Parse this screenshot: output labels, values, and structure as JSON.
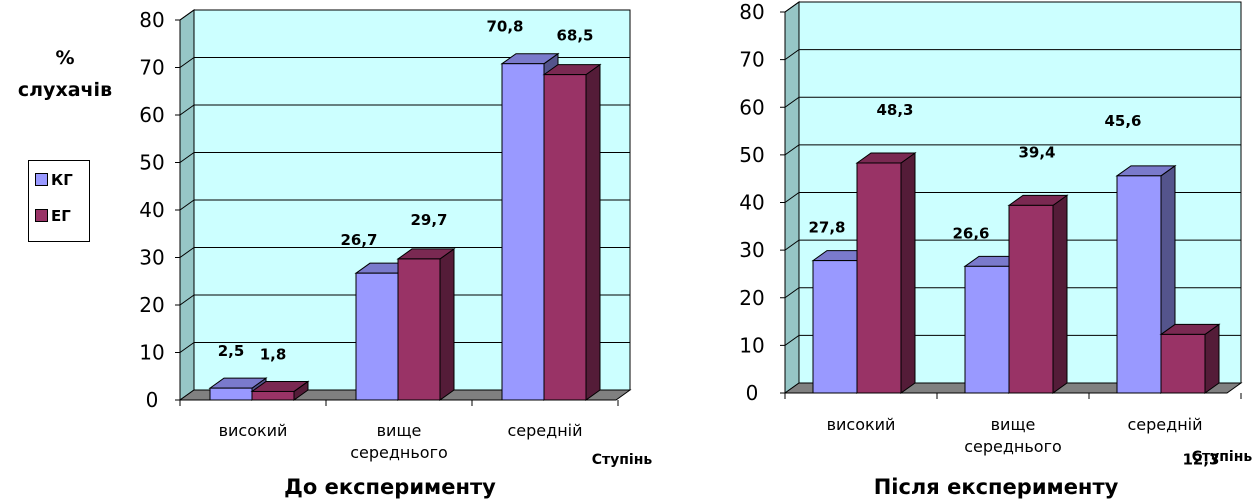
{
  "y_axis_label": [
    "%",
    "слухачів"
  ],
  "legend": [
    {
      "label": "КГ",
      "color": "#9999ff"
    },
    {
      "label": "ЕГ",
      "color": "#993366"
    }
  ],
  "colors": {
    "wall": "#ccffff",
    "side_wall": "#96c6c6",
    "floor": "#808080"
  },
  "chart_data": [
    {
      "type": "bar",
      "title": "До експерименту",
      "xlabel": "Ступінь",
      "ylabel": "% слухачів",
      "categories": [
        [
          "високий"
        ],
        [
          "вище",
          "середнього"
        ],
        [
          "середній"
        ]
      ],
      "series": [
        {
          "name": "КГ",
          "values": [
            2.5,
            26.7,
            70.8
          ],
          "labels": [
            "2,5",
            "26,7",
            "70,8"
          ]
        },
        {
          "name": "ЕГ",
          "values": [
            1.8,
            29.7,
            68.5
          ],
          "labels": [
            "1,8",
            "29,7",
            "68,5"
          ]
        }
      ],
      "ylim": [
        0,
        80
      ],
      "yticks": [
        0,
        10,
        20,
        30,
        40,
        50,
        60,
        70,
        80
      ],
      "grid": true
    },
    {
      "type": "bar",
      "title": "Після експерименту",
      "xlabel": "Ступінь",
      "ylabel": "",
      "categories": [
        [
          "високий"
        ],
        [
          "вище",
          "середнього"
        ],
        [
          "середній"
        ]
      ],
      "series": [
        {
          "name": "КГ",
          "values": [
            27.8,
            26.6,
            45.6
          ],
          "labels": [
            "27,8",
            "26,6",
            "45,6"
          ]
        },
        {
          "name": "ЕГ",
          "values": [
            48.3,
            39.4,
            12.3
          ],
          "labels": [
            "48,3",
            "39,4",
            "12,3"
          ]
        }
      ],
      "ylim": [
        0,
        80
      ],
      "yticks": [
        0,
        10,
        20,
        30,
        40,
        50,
        60,
        70,
        80
      ],
      "grid": true
    }
  ]
}
